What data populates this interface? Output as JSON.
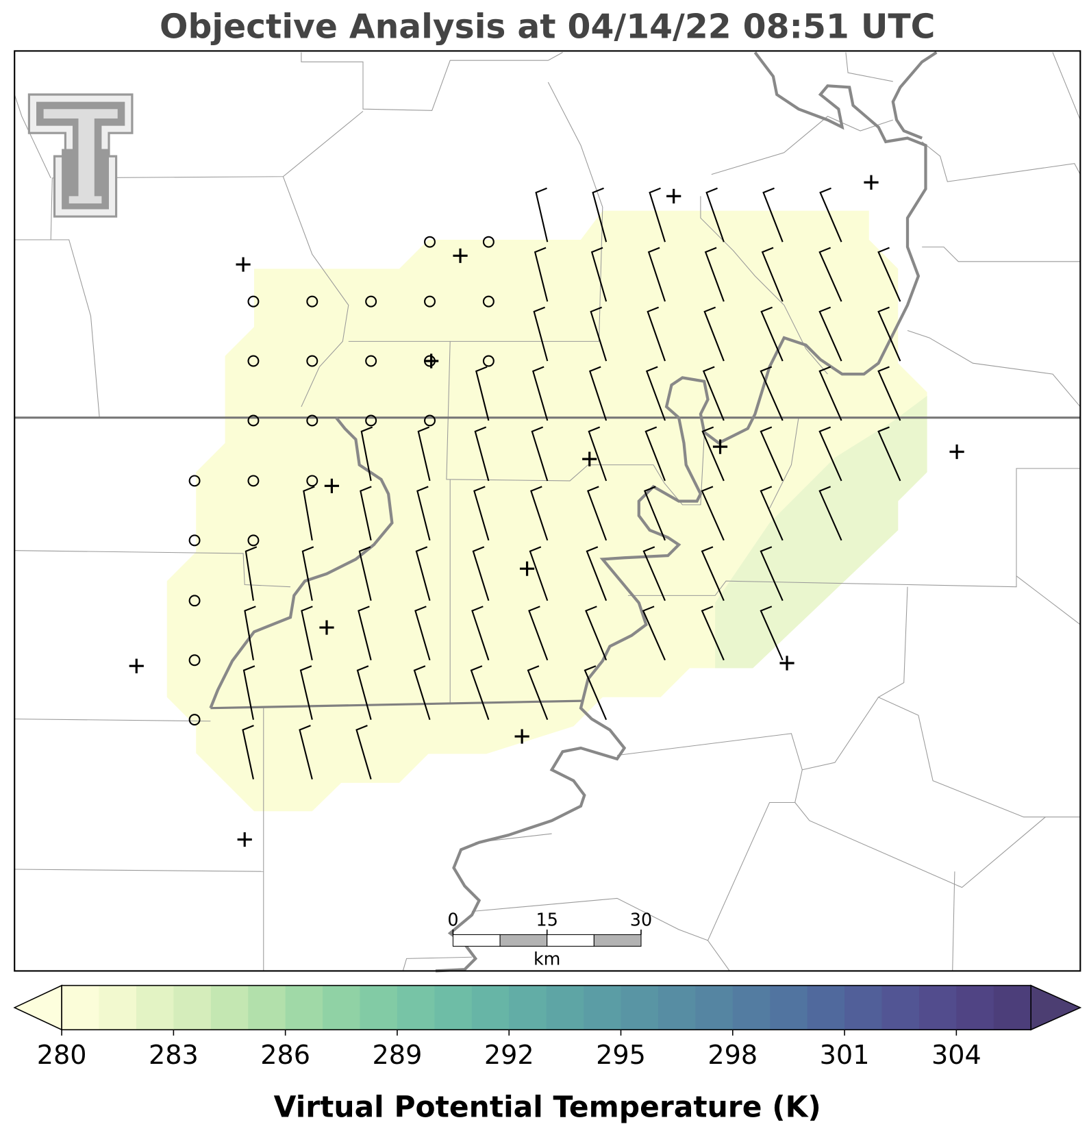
{
  "title": "Objective Analysis at 04/14/22 08:51 UTC",
  "colorbar": {
    "label": "Virtual Potential Temperature (K)",
    "range": [
      280,
      306
    ],
    "ticks": [
      280,
      283,
      286,
      289,
      292,
      295,
      298,
      301,
      304
    ],
    "colors": [
      "#fbfdd9",
      "#f2f9cf",
      "#e3f3c4",
      "#d5edbb",
      "#c4e7b2",
      "#b2e0ab",
      "#a0d9a7",
      "#90d2a5",
      "#82cba5",
      "#77c4a6",
      "#6ebda6",
      "#67b5a6",
      "#62ada6",
      "#5ea5a5",
      "#5b9da5",
      "#5995a4",
      "#578da3",
      "#5585a2",
      "#537ca1",
      "#5174a0",
      "#50699d",
      "#515f99",
      "#525594",
      "#524c8d",
      "#504484",
      "#4c3e7a"
    ],
    "under_color": "#fdfedd",
    "over_color": "#4c3e72"
  },
  "scale_bar": {
    "ticks": [
      0,
      15,
      30
    ],
    "unit": "km"
  }
}
